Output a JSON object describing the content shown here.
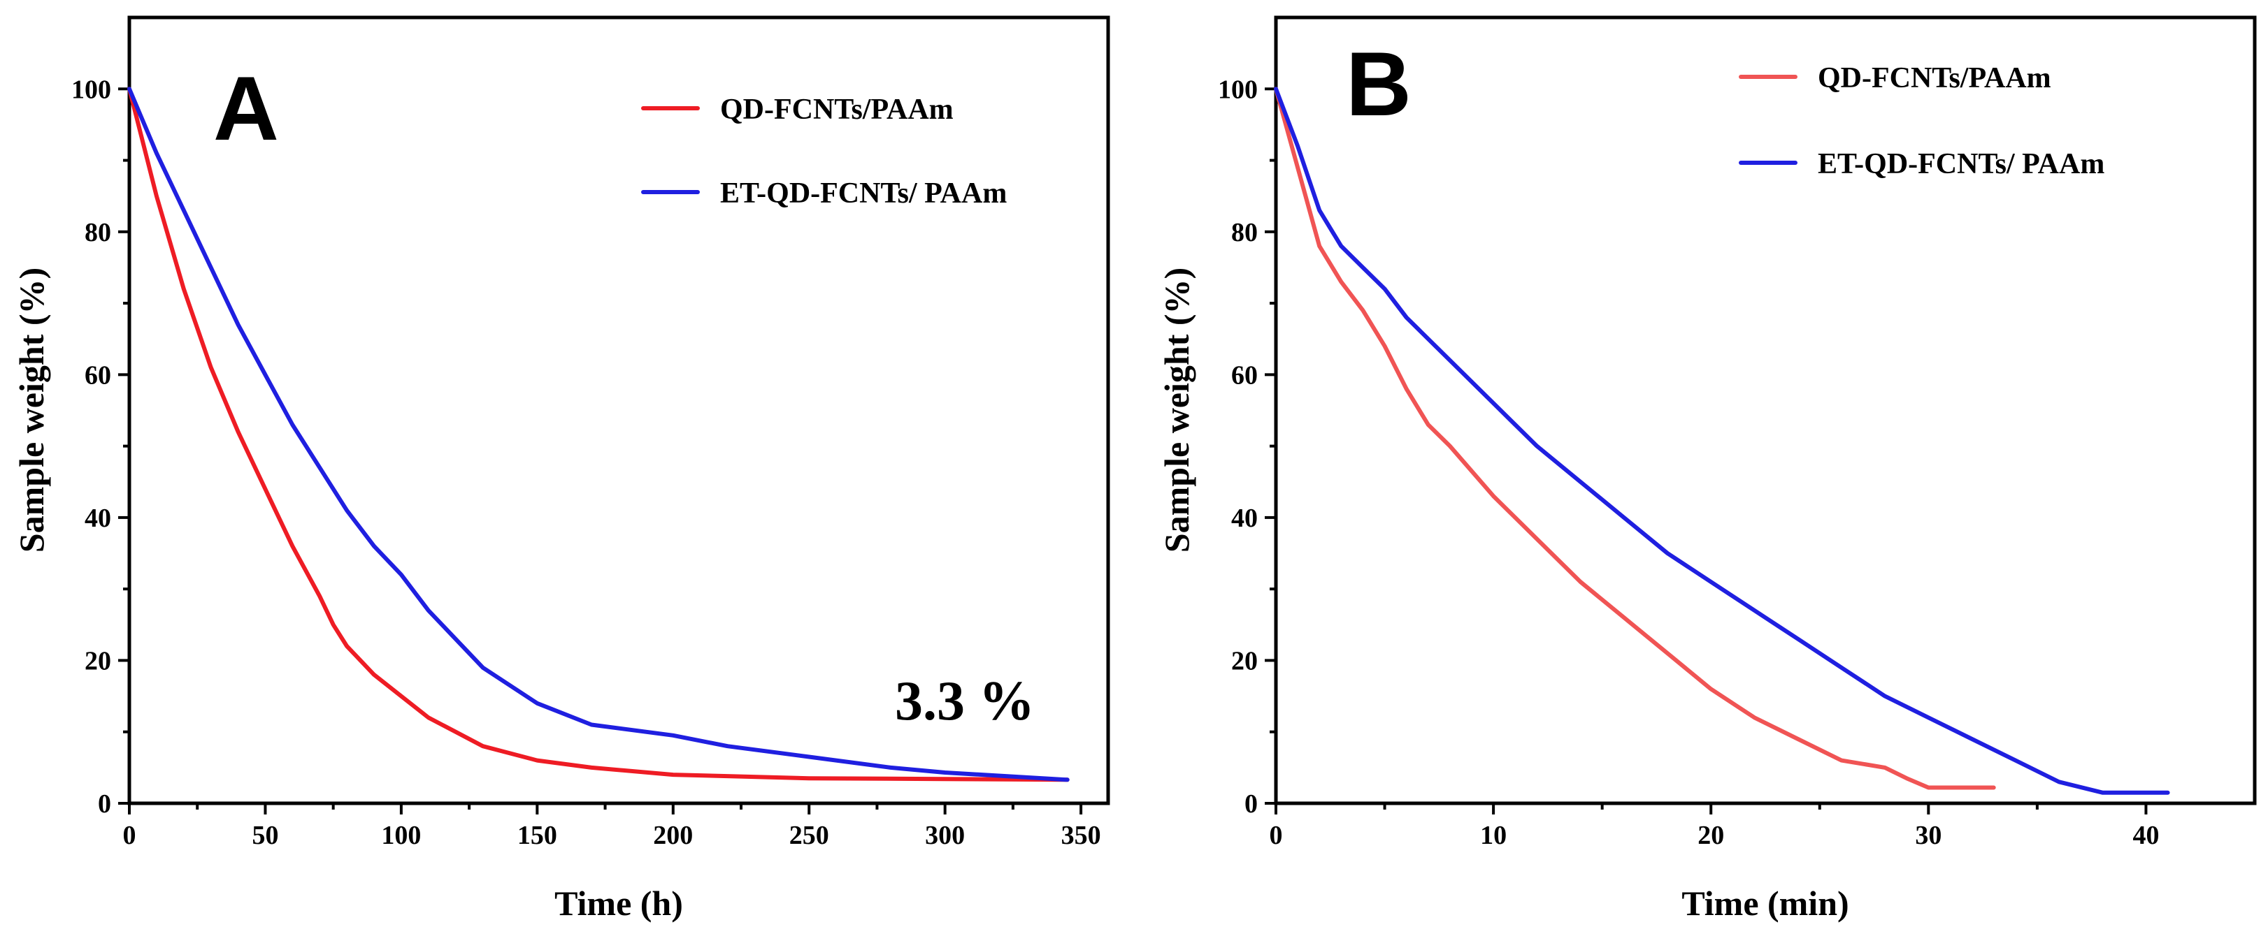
{
  "chart_data": [
    {
      "type": "line",
      "panel_label": "A",
      "xlabel": "Time (h)",
      "ylabel": "Sample weight (%)",
      "xlim": [
        0,
        360
      ],
      "ylim": [
        0,
        110
      ],
      "xticks": [
        0,
        50,
        100,
        150,
        200,
        250,
        300,
        350
      ],
      "yticks": [
        0,
        20,
        40,
        60,
        80,
        100
      ],
      "legend_position": "top-right",
      "annotation": "3.3 %",
      "series": [
        {
          "name": "QD-FCNTs/PAAm",
          "color": "#ee1c24",
          "x": [
            0,
            10,
            20,
            30,
            40,
            50,
            60,
            70,
            75,
            80,
            90,
            100,
            110,
            120,
            130,
            150,
            170,
            200,
            220,
            250,
            300,
            345
          ],
          "y": [
            100,
            85,
            72,
            61,
            52,
            44,
            36,
            29,
            25,
            22,
            18,
            15,
            12,
            10,
            8,
            6,
            5,
            4,
            3.8,
            3.5,
            3.4,
            3.3
          ]
        },
        {
          "name": "ET-QD-FCNTs/ PAAm",
          "color": "#1f1fe0",
          "x": [
            0,
            10,
            20,
            30,
            40,
            50,
            60,
            70,
            80,
            90,
            100,
            110,
            120,
            130,
            150,
            170,
            200,
            220,
            250,
            280,
            300,
            345
          ],
          "y": [
            100,
            91,
            83,
            75,
            67,
            60,
            53,
            47,
            41,
            36,
            32,
            27,
            23,
            19,
            14,
            11,
            9.5,
            8,
            6.5,
            5,
            4.3,
            3.3
          ]
        }
      ]
    },
    {
      "type": "line",
      "panel_label": "B",
      "xlabel": "Time (min)",
      "ylabel": "Sample weight (%)",
      "xlim": [
        0,
        45
      ],
      "ylim": [
        0,
        110
      ],
      "xticks": [
        0,
        10,
        20,
        30,
        40
      ],
      "yticks": [
        0,
        20,
        40,
        60,
        80,
        100
      ],
      "legend_position": "top-right",
      "series": [
        {
          "name": "QD-FCNTs/PAAm",
          "color": "#f05454",
          "x": [
            0,
            1,
            2,
            3,
            4,
            5,
            6,
            7,
            8,
            10,
            12,
            14,
            16,
            18,
            20,
            22,
            24,
            26,
            28,
            29,
            30,
            33
          ],
          "y": [
            100,
            89,
            78,
            73,
            69,
            64,
            58,
            53,
            50,
            43,
            37,
            31,
            26,
            21,
            16,
            12,
            9,
            6,
            5,
            3.5,
            2.2,
            2.2
          ]
        },
        {
          "name": "ET-QD-FCNTs/ PAAm",
          "color": "#1f1fe0",
          "x": [
            0,
            1,
            2,
            3,
            4,
            5,
            6,
            8,
            10,
            12,
            14,
            16,
            18,
            20,
            22,
            24,
            26,
            28,
            30,
            32,
            34,
            36,
            38,
            41
          ],
          "y": [
            100,
            92,
            83,
            78,
            75,
            72,
            68,
            62,
            56,
            50,
            45,
            40,
            35,
            31,
            27,
            23,
            19,
            15,
            12,
            9,
            6,
            3,
            1.5,
            1.5
          ]
        }
      ]
    }
  ]
}
